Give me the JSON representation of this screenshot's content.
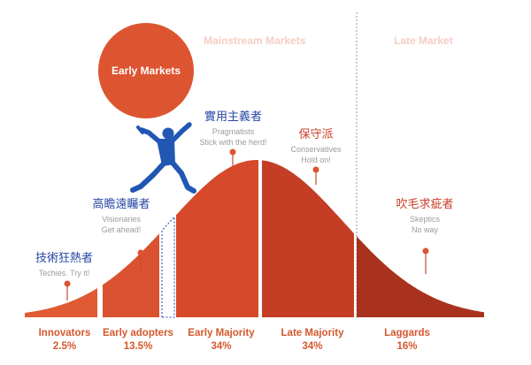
{
  "markets": {
    "early": "Early Markets",
    "mainstream": "Mainstream Markets",
    "late": "Late Market"
  },
  "groups": [
    {
      "key": "innovators",
      "cn": "技術狂熱者",
      "en1": "Techies. Try it!",
      "en2": "",
      "name": "Innovators",
      "pct": "2.5%"
    },
    {
      "key": "early-adopters",
      "cn": "高瞻遠矚者",
      "en1": "Visionaries",
      "en2": "Get ahead!",
      "name": "Early adopters",
      "pct": "13.5%"
    },
    {
      "key": "early-majority",
      "cn": "實用主義者",
      "en1": "Pragmatists",
      "en2": "Stick with the herd!",
      "name": "Early Majority",
      "pct": "34%"
    },
    {
      "key": "late-majority",
      "cn": "保守派",
      "en1": "Conservatives",
      "en2": "Hold on!",
      "name": "Late Majority",
      "pct": "34%"
    },
    {
      "key": "laggards",
      "cn": "吹毛求疵者",
      "en1": "Skeptics",
      "en2": "No way",
      "name": "Laggards",
      "pct": "16%"
    }
  ],
  "colors": {
    "innovators": "#e05a34",
    "early_adopters": "#da5230",
    "early_majority": "#d6492a",
    "late_majority": "#c43d24",
    "laggards": "#a8321e",
    "circle": "#dd5430",
    "figure": "#2157b3",
    "text_blue": "#2646a4"
  }
}
